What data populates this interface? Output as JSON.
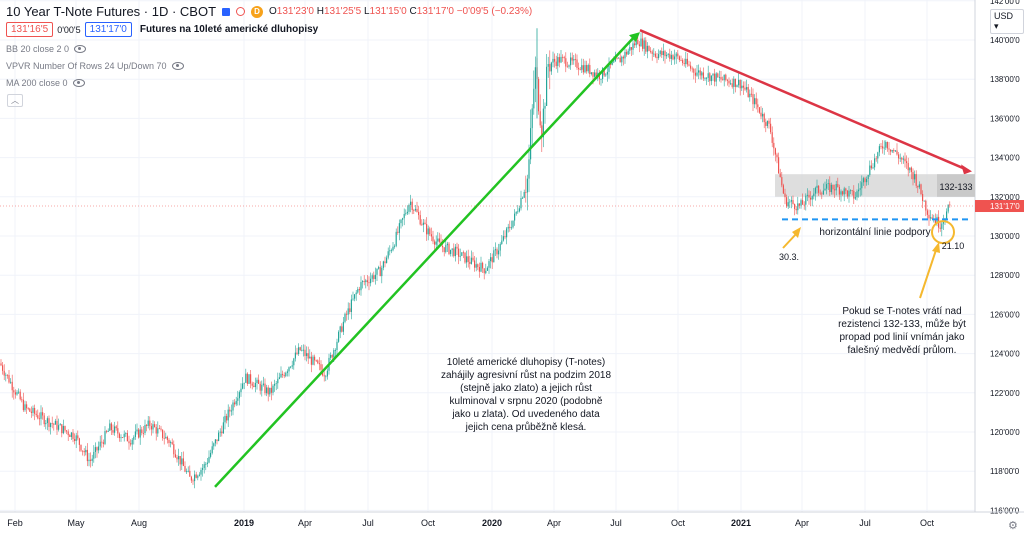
{
  "header": {
    "title": "10 Year T-Note Futures · 1D · CBOT",
    "badge": "D",
    "ohlc": [
      {
        "k": "O",
        "v": "131'23'0"
      },
      {
        "k": "H",
        "v": "131'25'5"
      },
      {
        "k": "L",
        "v": "131'15'0"
      },
      {
        "k": "C",
        "v": "131'17'0"
      },
      {
        "k": "",
        "v": "−0'09'5 (−0.23%)"
      }
    ]
  },
  "toolbar": {
    "bid": "131'16'5",
    "spread": "0'00'5",
    "ask": "131'17'0",
    "subtitle": "Futures na 10leté americké dluhopisy"
  },
  "indicators": [
    "BB 20 close 2 0",
    "VPVR Number Of Rows 24 Up/Down 70",
    "MA 200 close 0"
  ],
  "price_axis": {
    "currency": "USD",
    "ticks": [
      "142'00'0",
      "140'00'0",
      "138'00'0",
      "136'00'0",
      "134'00'0",
      "132'00'0",
      "130'00'0",
      "128'00'0",
      "126'00'0",
      "124'00'0",
      "122'00'0",
      "120'00'0",
      "118'00'0",
      "116'00'0"
    ],
    "tick_values": [
      142,
      140,
      138,
      136,
      134,
      132,
      130,
      128,
      126,
      124,
      122,
      120,
      118,
      116
    ],
    "current_label": "131'17'0",
    "current_value": 131.53,
    "zone_label": "132-133"
  },
  "time_axis": [
    "Feb",
    "May",
    "Aug",
    "2019",
    "Apr",
    "Jul",
    "Oct",
    "2020",
    "Apr",
    "Jul",
    "Oct",
    "2021",
    "Apr",
    "Jul",
    "Oct"
  ],
  "annotations": {
    "main_text": [
      "10leté americké dluhopisy (T-notes)",
      "zahájily agresivní růst na podzim 2018",
      "(stejně jako zlato) a jejich růst",
      "kulminoval v srpnu 2020 (podobně",
      "jako u zlata). Od uvedeného data",
      "jejich cena průběžně klesá."
    ],
    "support_label": "horizontální linie podpory",
    "date_a": "30.3.",
    "date_b": "21.10",
    "right_text": [
      "Pokud se T-notes vrátí nad",
      "rezistenci 132-133, může být",
      "propad pod linií vnímán jako",
      "falešný medvědí průlom."
    ]
  },
  "colors": {
    "up": "#26a69a",
    "down": "#ef5350",
    "green_trend": "#22c322",
    "red_trend": "#dc3545",
    "support": "#2196f3",
    "circle": "#f5b82e",
    "candle": "#2e7d32"
  },
  "chart_data": {
    "type": "candlestick",
    "title": "10 Year T-Note Futures · 1D · CBOT",
    "ylim": [
      116,
      142
    ],
    "y_unit": "price",
    "anchors": [
      {
        "x": 0,
        "y": 123.5
      },
      {
        "x": 25,
        "y": 121.2
      },
      {
        "x": 50,
        "y": 120.5
      },
      {
        "x": 75,
        "y": 119.8
      },
      {
        "x": 90,
        "y": 118.5
      },
      {
        "x": 110,
        "y": 120.2
      },
      {
        "x": 130,
        "y": 119.6
      },
      {
        "x": 150,
        "y": 120.4
      },
      {
        "x": 170,
        "y": 119.5
      },
      {
        "x": 190,
        "y": 117.6
      },
      {
        "x": 205,
        "y": 118.3
      },
      {
        "x": 220,
        "y": 120.0
      },
      {
        "x": 245,
        "y": 122.8
      },
      {
        "x": 270,
        "y": 122.0
      },
      {
        "x": 300,
        "y": 124.2
      },
      {
        "x": 325,
        "y": 123.0
      },
      {
        "x": 345,
        "y": 125.8
      },
      {
        "x": 360,
        "y": 127.5
      },
      {
        "x": 380,
        "y": 128.2
      },
      {
        "x": 395,
        "y": 129.8
      },
      {
        "x": 410,
        "y": 131.8
      },
      {
        "x": 425,
        "y": 130.4
      },
      {
        "x": 440,
        "y": 129.5
      },
      {
        "x": 455,
        "y": 129.2
      },
      {
        "x": 470,
        "y": 128.7
      },
      {
        "x": 485,
        "y": 128.3
      },
      {
        "x": 500,
        "y": 129.5
      },
      {
        "x": 515,
        "y": 131.0
      },
      {
        "x": 528,
        "y": 133.0
      },
      {
        "x": 535,
        "y": 138.5
      },
      {
        "x": 542,
        "y": 135.5
      },
      {
        "x": 548,
        "y": 138.8
      },
      {
        "x": 560,
        "y": 139.0
      },
      {
        "x": 580,
        "y": 138.7
      },
      {
        "x": 600,
        "y": 138.2
      },
      {
        "x": 620,
        "y": 139.0
      },
      {
        "x": 638,
        "y": 140.0
      },
      {
        "x": 655,
        "y": 139.3
      },
      {
        "x": 675,
        "y": 139.2
      },
      {
        "x": 695,
        "y": 138.4
      },
      {
        "x": 720,
        "y": 138.0
      },
      {
        "x": 740,
        "y": 137.8
      },
      {
        "x": 755,
        "y": 136.8
      },
      {
        "x": 770,
        "y": 135.5
      },
      {
        "x": 785,
        "y": 131.8
      },
      {
        "x": 800,
        "y": 131.5
      },
      {
        "x": 815,
        "y": 132.3
      },
      {
        "x": 835,
        "y": 132.5
      },
      {
        "x": 855,
        "y": 132.0
      },
      {
        "x": 870,
        "y": 133.5
      },
      {
        "x": 885,
        "y": 134.8
      },
      {
        "x": 900,
        "y": 134.0
      },
      {
        "x": 915,
        "y": 133.0
      },
      {
        "x": 928,
        "y": 131.2
      },
      {
        "x": 940,
        "y": 130.6
      },
      {
        "x": 950,
        "y": 131.5
      }
    ],
    "trend_lines": [
      {
        "name": "uptrend",
        "from": [
          215,
          117.2
        ],
        "to": [
          640,
          140.4
        ]
      },
      {
        "name": "downtrend",
        "from": [
          640,
          140.5
        ],
        "to": [
          972,
          133.3
        ]
      }
    ],
    "support_level": 130.85,
    "resistance_zone": [
      132.0,
      133.0
    ]
  }
}
